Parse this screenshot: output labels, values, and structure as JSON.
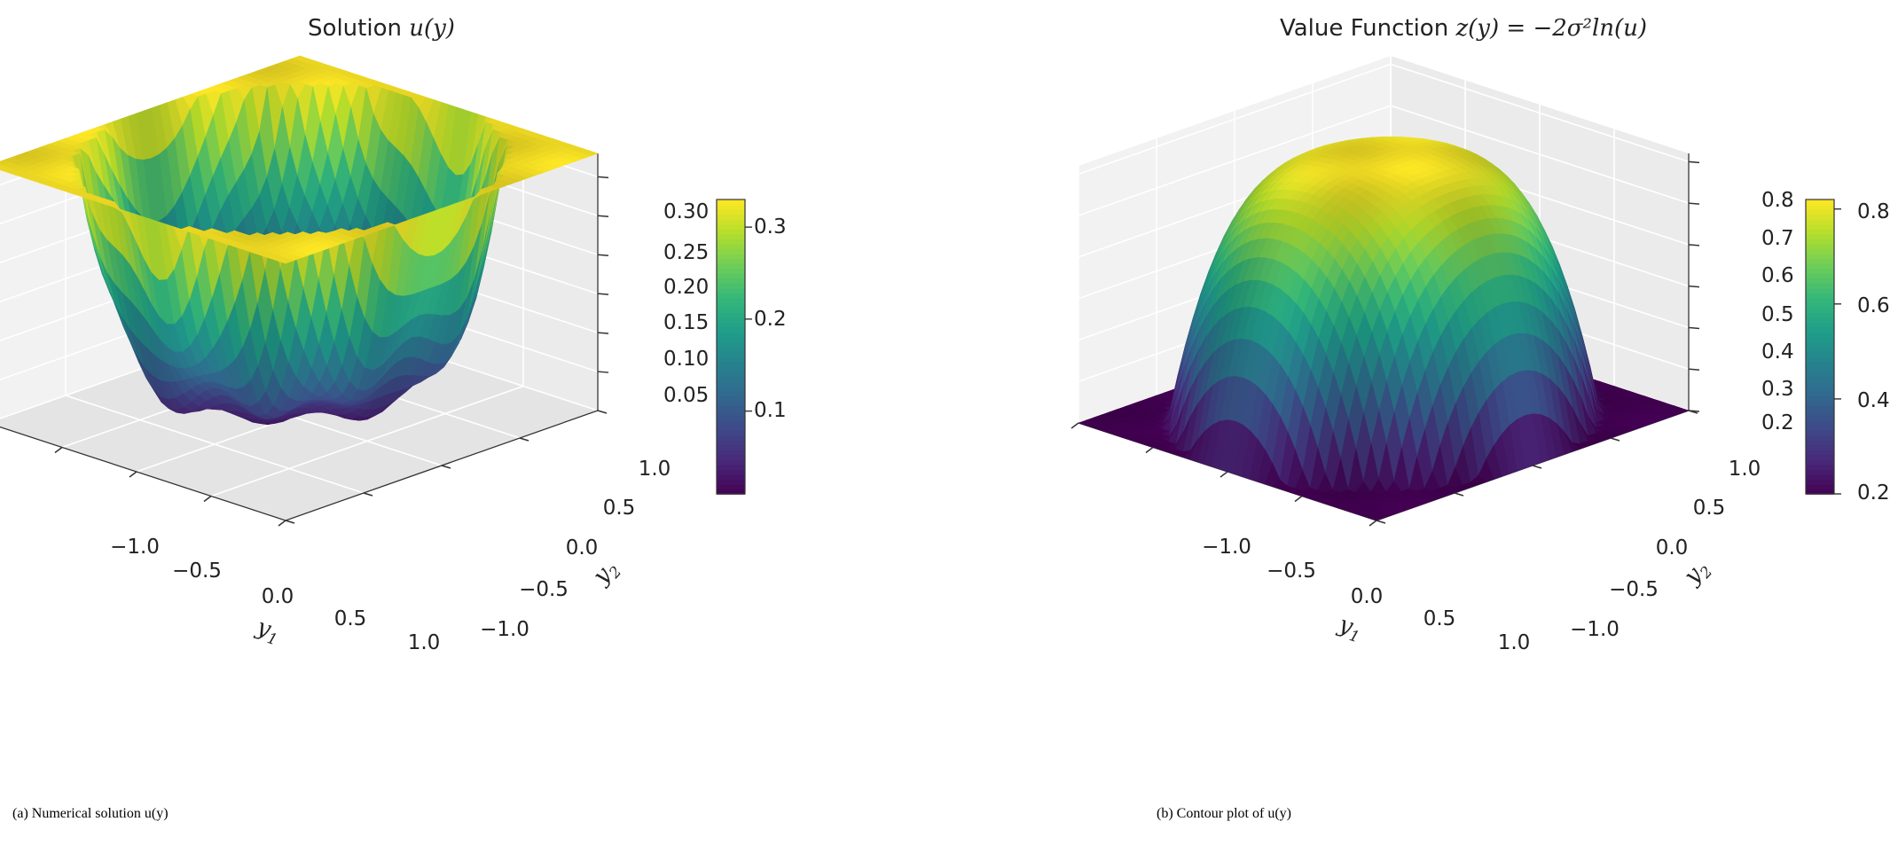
{
  "colors": {
    "viridis": [
      "#440154",
      "#482878",
      "#3e4989",
      "#31688e",
      "#26828e",
      "#1f9e89",
      "#35b779",
      "#6ece58",
      "#b5de2b",
      "#fde725"
    ],
    "pane_left": "#f2f2f2",
    "pane_right": "#ebebeb",
    "pane_floor": "#e4e4e4",
    "grid": "#ffffff"
  },
  "chart_data": [
    {
      "type": "surface3d",
      "title_prefix": "Solution ",
      "title_math": "u(y)",
      "xlabel": "y",
      "xlabel_sub": "1",
      "ylabel": "y",
      "ylabel_sub": "2",
      "x_range": [
        -1.0,
        1.0
      ],
      "y_range": [
        -1.0,
        1.0
      ],
      "z_range": [
        0.0,
        0.33
      ],
      "x_ticks": [
        "−1.0",
        "−0.5",
        "0.0",
        "0.5",
        "1.0"
      ],
      "y_ticks": [
        "−1.0",
        "−0.5",
        "0.0",
        "0.5",
        "1.0"
      ],
      "z_ticks": [
        "0.05",
        "0.10",
        "0.15",
        "0.20",
        "0.25",
        "0.30"
      ],
      "z_tick_values": [
        0.05,
        0.1,
        0.15,
        0.2,
        0.25,
        0.3
      ],
      "colorbar": {
        "min": 0.01,
        "max": 0.33,
        "tick_labels": [
          "0.1",
          "0.2",
          "0.3"
        ],
        "tick_values": [
          0.1,
          0.2,
          0.3
        ]
      },
      "surface": "bowl: u is about 0.33 outside the unit disk and falls to about 0.01 at the centre; about 0.03 + 0.30·r^6, with oscillating ripples"
    },
    {
      "type": "surface3d",
      "title_prefix": "Value Function ",
      "title_math": "z(y) = −2σ²ln(u)",
      "xlabel": "y",
      "xlabel_sub": "1",
      "ylabel": "y",
      "ylabel_sub": "2",
      "x_range": [
        -1.0,
        1.0
      ],
      "y_range": [
        -1.0,
        1.0
      ],
      "z_range": [
        0.2,
        0.82
      ],
      "x_ticks": [
        "−1.0",
        "−0.5",
        "0.0",
        "0.5",
        "1.0"
      ],
      "y_ticks": [
        "−1.0",
        "−0.5",
        "0.0",
        "0.5",
        "1.0"
      ],
      "z_ticks": [
        "0.2",
        "0.3",
        "0.4",
        "0.5",
        "0.6",
        "0.7",
        "0.8"
      ],
      "z_tick_values": [
        0.2,
        0.3,
        0.4,
        0.5,
        0.6,
        0.7,
        0.8
      ],
      "colorbar": {
        "min": 0.2,
        "max": 0.82,
        "tick_labels": [
          "0.2",
          "0.4",
          "0.6",
          "0.8"
        ],
        "tick_values": [
          0.2,
          0.4,
          0.6,
          0.8
        ]
      },
      "surface": "dome: z is about 0.2 outside the unit disk and rises to about 0.82 at the centre; about 0.2 + 0.62·(1 − r^4)"
    }
  ],
  "captions": [
    {
      "label": "a",
      "text": "Numerical solution ",
      "math": "u(y)"
    },
    {
      "label": "b",
      "text": "Contour plot of ",
      "math": "u(y)"
    }
  ]
}
